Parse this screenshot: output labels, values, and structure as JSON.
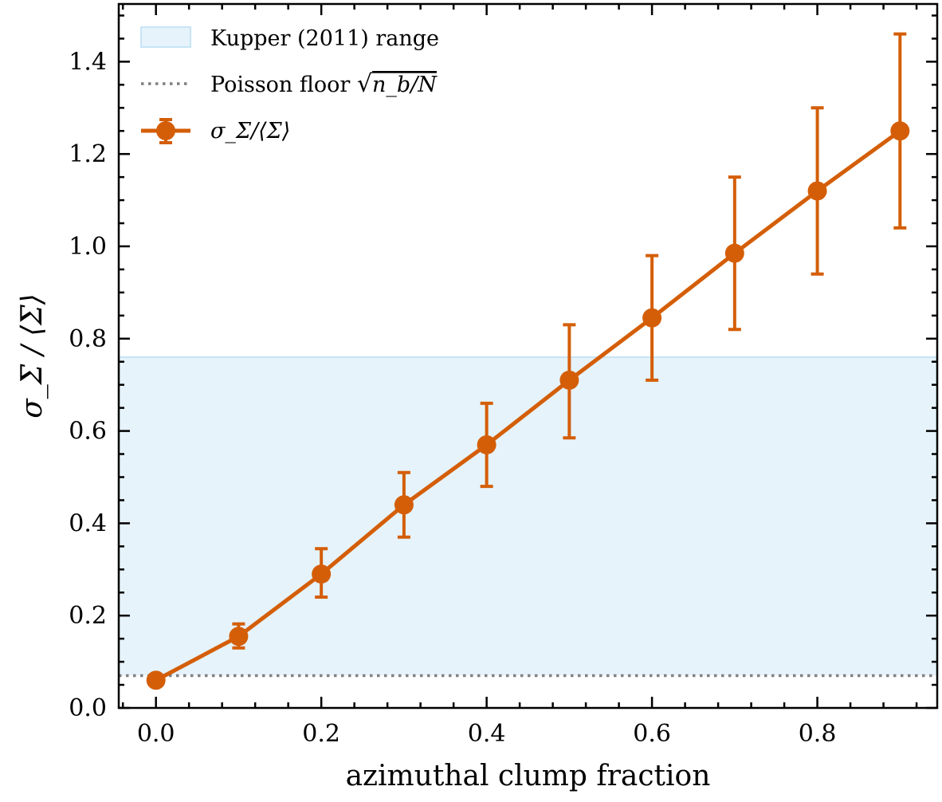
{
  "chart_data": {
    "type": "line",
    "title": "",
    "xlabel": "azimuthal clump fraction",
    "ylabel": "σ_Σ / ⟨Σ⟩",
    "xlim": [
      -0.045,
      0.945
    ],
    "ylim": [
      0.0,
      1.525
    ],
    "x_ticks": [
      0.0,
      0.2,
      0.4,
      0.6,
      0.8
    ],
    "x_tick_labels": [
      "0.0",
      "0.2",
      "0.4",
      "0.6",
      "0.8"
    ],
    "y_ticks": [
      0.0,
      0.2,
      0.4,
      0.6,
      0.8,
      1.0,
      1.2,
      1.4
    ],
    "y_tick_labels": [
      "0.0",
      "0.2",
      "0.4",
      "0.6",
      "0.8",
      "1.0",
      "1.2",
      "1.4"
    ],
    "grid": false,
    "legend_position": "top-left",
    "colors": {
      "series": "#d45e07",
      "band_fill": "#e6f3fb",
      "band_edge": "#c8e4f6",
      "floor": "#808080"
    },
    "band": {
      "name": "Kupper (2011) range",
      "ymin": 0.07,
      "ymax": 0.76
    },
    "reference_line": {
      "name": "Poisson floor √(n_b/N)",
      "name_prefix": "Poisson floor",
      "y": 0.07
    },
    "series": [
      {
        "name": "σ_Σ/⟨Σ⟩",
        "x": [
          0.0,
          0.1,
          0.2,
          0.3,
          0.4,
          0.5,
          0.6,
          0.7,
          0.8,
          0.9
        ],
        "y": [
          0.06,
          0.155,
          0.29,
          0.44,
          0.57,
          0.71,
          0.845,
          0.985,
          1.12,
          1.25
        ],
        "yerr_low": [
          0.0,
          0.13,
          0.24,
          0.37,
          0.48,
          0.585,
          0.71,
          0.82,
          0.94,
          1.04
        ],
        "yerr_high": [
          0.0,
          0.182,
          0.345,
          0.51,
          0.66,
          0.83,
          0.98,
          1.15,
          1.3,
          1.46
        ]
      }
    ]
  }
}
